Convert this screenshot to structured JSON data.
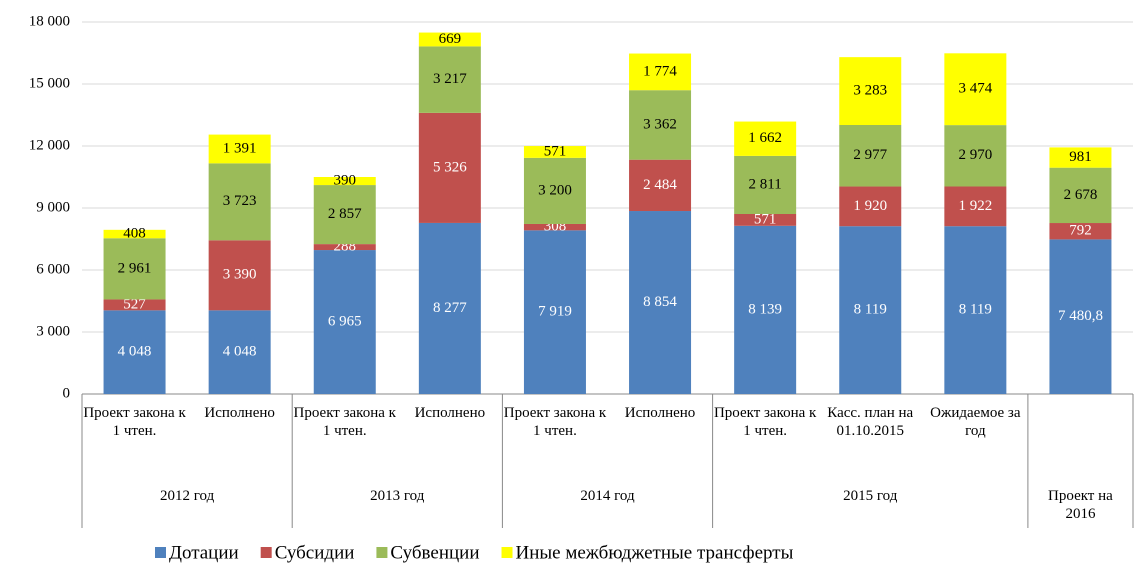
{
  "chart_data": {
    "type": "stacked_bar",
    "groups": [
      {
        "name": "2012 год",
        "categories": [
          "Проект закона к 1 чтен.",
          "Исполнено"
        ]
      },
      {
        "name": "2013 год",
        "categories": [
          "Проект закона к 1 чтен.",
          "Исполнено"
        ]
      },
      {
        "name": "2014 год",
        "categories": [
          "Проект закона к 1 чтен.",
          "Исполнено"
        ]
      },
      {
        "name": "2015 год",
        "categories": [
          "Проект закона к 1 чтен.",
          "Касс. план на 01.10.2015",
          "Ожидаемое за год"
        ]
      },
      {
        "name": "Проект на 2016",
        "categories": [
          null
        ]
      }
    ],
    "series": [
      {
        "name": "Дотации",
        "color": "#4f81bd",
        "label_color": "#ffffff",
        "values": [
          4048,
          4048,
          6965,
          8277,
          7919,
          8854,
          8139,
          8119,
          8119,
          7480.8
        ],
        "value_labels": [
          "4 048",
          "4 048",
          "6 965",
          "8 277",
          "7 919",
          "8 854",
          "8 139",
          "8 119",
          "8 119",
          "7 480,8"
        ]
      },
      {
        "name": "Субсидии",
        "color": "#c0504d",
        "label_color": "#ffffff",
        "values": [
          527,
          3390,
          288,
          5326,
          308,
          2484,
          571,
          1920,
          1922,
          792
        ],
        "value_labels": [
          "527",
          "3 390",
          "288",
          "5 326",
          "308",
          "2 484",
          "571",
          "1 920",
          "1 922",
          "792"
        ]
      },
      {
        "name": "Субвенции",
        "color": "#9bbb59",
        "label_color": "#000000",
        "values": [
          2961,
          3723,
          2857,
          3217,
          3200,
          3362,
          2811,
          2977,
          2970,
          2678
        ],
        "value_labels": [
          "2 961",
          "3 723",
          "2 857",
          "3 217",
          "3 200",
          "3 362",
          "2 811",
          "2 977",
          "2 970",
          "2 678"
        ]
      },
      {
        "name": "Иные межбюджетные трансферты",
        "color": "#ffff00",
        "label_color": "#000000",
        "values": [
          408,
          1391,
          390,
          669,
          571,
          1774,
          1662,
          3283,
          3474,
          981
        ],
        "value_labels": [
          "408",
          "1 391",
          "390",
          "669",
          "571",
          "1 774",
          "1 662",
          "3 283",
          "3 474",
          "981"
        ]
      }
    ],
    "ylim": [
      0,
      18000
    ],
    "yticks": [
      0,
      {
        "value": 3000,
        "label": "3 000"
      },
      {
        "value": 6000,
        "label": "6 000"
      },
      {
        "value": 9000,
        "label": "9 000"
      },
      {
        "value": 12000,
        "label": "12 000"
      },
      {
        "value": 15000,
        "label": "15 000"
      },
      {
        "value": 18000,
        "label": "18 000"
      }
    ],
    "grid": true,
    "legend": "bottom"
  }
}
